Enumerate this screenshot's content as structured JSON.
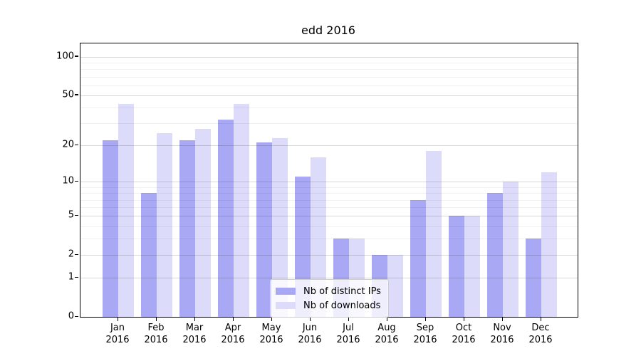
{
  "chart_data": {
    "type": "bar",
    "title": "edd 2016",
    "xlabel": "",
    "ylabel": "",
    "categories": [
      "Jan",
      "Feb",
      "Mar",
      "Apr",
      "May",
      "Jun",
      "Jul",
      "Aug",
      "Sep",
      "Oct",
      "Nov",
      "Dec"
    ],
    "category_year_label": "2016",
    "series": [
      {
        "name": "Nb of distinct IPs",
        "color": "#a8a8f5",
        "values": [
          22,
          8,
          22,
          32,
          21,
          11,
          3,
          2,
          7,
          5,
          8,
          3
        ]
      },
      {
        "name": "Nb of downloads",
        "color": "#dcdcfa",
        "values": [
          43,
          25,
          27,
          43,
          23,
          16,
          3,
          2,
          18,
          5,
          10,
          12
        ]
      }
    ],
    "y_scale": "log1p",
    "y_ticks": [
      0,
      1,
      2,
      5,
      10,
      20,
      50,
      100
    ],
    "y_minor_ticks": [
      3,
      4,
      6,
      7,
      8,
      9,
      30,
      40,
      60,
      70,
      80,
      90
    ],
    "ylim": [
      0,
      128
    ],
    "grid": true,
    "legend_position": "lower-center-inside"
  }
}
